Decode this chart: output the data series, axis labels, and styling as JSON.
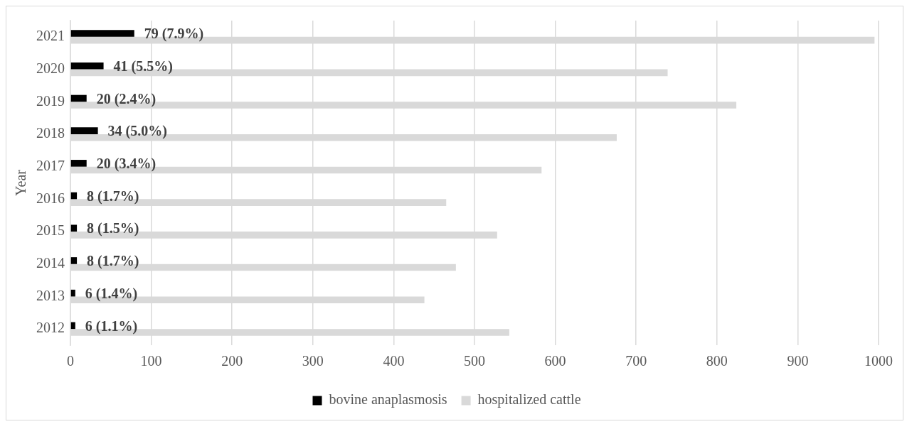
{
  "chart_data": {
    "type": "bar",
    "orientation": "horizontal",
    "ylabel": "Year",
    "categories": [
      "2021",
      "2020",
      "2019",
      "2018",
      "2017",
      "2016",
      "2015",
      "2014",
      "2013",
      "2012"
    ],
    "series": [
      {
        "name": "bovine anaplasmosis",
        "color": "#000000",
        "values": [
          79,
          41,
          20,
          34,
          20,
          8,
          8,
          8,
          6,
          6
        ],
        "value_labels": [
          "79 (7.9%)",
          "41 (5.5%)",
          "20 (2.4%)",
          "34 (5.0%)",
          "20 (3.4%)",
          "8 (1.7%)",
          "8 (1.5%)",
          "8 (1.7%)",
          "6 (1.4%)",
          "6 (1.1%)"
        ]
      },
      {
        "name": "hospitalized cattle",
        "color": "#d9d9d9",
        "values": [
          995,
          739,
          824,
          676,
          583,
          465,
          528,
          477,
          438,
          543
        ]
      }
    ],
    "xlim": [
      0,
      1000
    ],
    "xticks": [
      0,
      100,
      200,
      300,
      400,
      500,
      600,
      700,
      800,
      900,
      1000
    ],
    "grid": "x",
    "legend": "bottom"
  }
}
